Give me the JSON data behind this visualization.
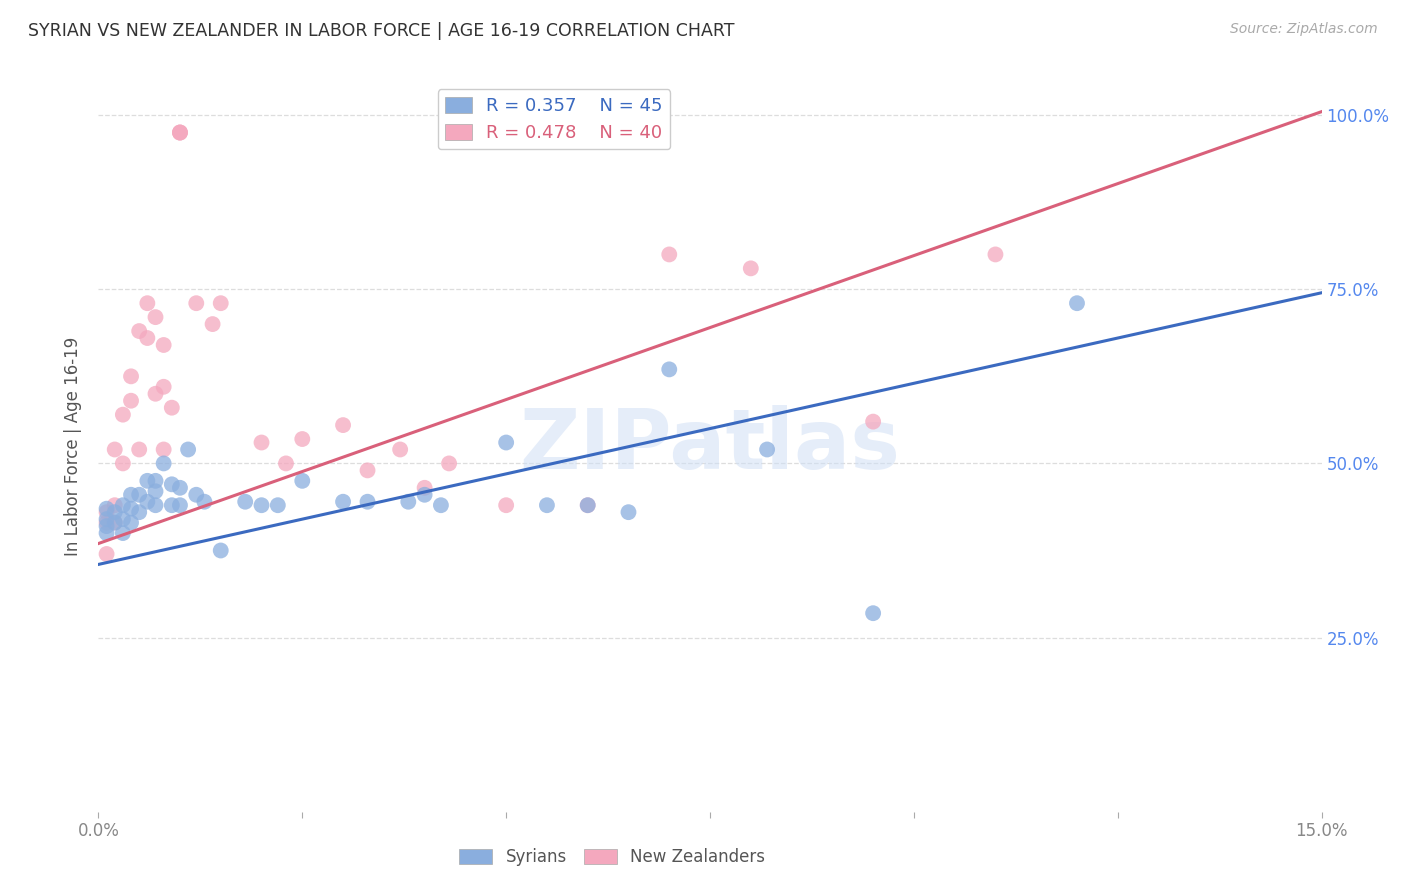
{
  "title": "SYRIAN VS NEW ZEALANDER IN LABOR FORCE | AGE 16-19 CORRELATION CHART",
  "source": "Source: ZipAtlas.com",
  "ylabel_label": "In Labor Force | Age 16-19",
  "xlim": [
    0.0,
    0.15
  ],
  "ylim": [
    0.0,
    1.05
  ],
  "yticks": [
    0.25,
    0.5,
    0.75,
    1.0
  ],
  "ytick_labels": [
    "25.0%",
    "50.0%",
    "75.0%",
    "100.0%"
  ],
  "xticks": [
    0.0,
    0.025,
    0.05,
    0.075,
    0.1,
    0.125,
    0.15
  ],
  "xtick_labels": [
    "0.0%",
    "",
    "",
    "",
    "",
    "",
    "15.0%"
  ],
  "background_color": "#ffffff",
  "grid_color": "#dddddd",
  "watermark_text": "ZIPatlas",
  "legend_r_syrian": "R = 0.357",
  "legend_n_syrian": "N = 45",
  "legend_r_nz": "R = 0.478",
  "legend_n_nz": "N = 40",
  "syrian_color": "#8AAEDE",
  "nz_color": "#F4A8BE",
  "syrian_line_color": "#3B6AC0",
  "nz_line_color": "#D9607A",
  "title_color": "#333333",
  "axis_label_color": "#555555",
  "tick_color_y": "#5588EE",
  "tick_color_x": "#888888",
  "syrian_points_x": [
    0.001,
    0.001,
    0.001,
    0.001,
    0.002,
    0.002,
    0.003,
    0.003,
    0.003,
    0.004,
    0.004,
    0.004,
    0.005,
    0.005,
    0.006,
    0.006,
    0.007,
    0.007,
    0.007,
    0.008,
    0.009,
    0.009,
    0.01,
    0.01,
    0.011,
    0.012,
    0.013,
    0.015,
    0.018,
    0.02,
    0.022,
    0.025,
    0.03,
    0.033,
    0.038,
    0.04,
    0.042,
    0.05,
    0.055,
    0.06,
    0.065,
    0.07,
    0.082,
    0.095,
    0.12
  ],
  "syrian_points_y": [
    0.435,
    0.42,
    0.41,
    0.4,
    0.43,
    0.415,
    0.44,
    0.42,
    0.4,
    0.455,
    0.435,
    0.415,
    0.455,
    0.43,
    0.475,
    0.445,
    0.475,
    0.46,
    0.44,
    0.5,
    0.47,
    0.44,
    0.465,
    0.44,
    0.52,
    0.455,
    0.445,
    0.375,
    0.445,
    0.44,
    0.44,
    0.475,
    0.445,
    0.445,
    0.445,
    0.455,
    0.44,
    0.53,
    0.44,
    0.44,
    0.43,
    0.635,
    0.52,
    0.285,
    0.73
  ],
  "nz_points_x": [
    0.001,
    0.001,
    0.001,
    0.002,
    0.002,
    0.002,
    0.003,
    0.003,
    0.004,
    0.004,
    0.005,
    0.005,
    0.006,
    0.006,
    0.007,
    0.007,
    0.008,
    0.008,
    0.008,
    0.009,
    0.01,
    0.01,
    0.01,
    0.012,
    0.014,
    0.015,
    0.02,
    0.023,
    0.025,
    0.03,
    0.033,
    0.037,
    0.04,
    0.043,
    0.05,
    0.06,
    0.07,
    0.08,
    0.095,
    0.11
  ],
  "nz_points_y": [
    0.43,
    0.415,
    0.37,
    0.52,
    0.44,
    0.415,
    0.57,
    0.5,
    0.625,
    0.59,
    0.69,
    0.52,
    0.73,
    0.68,
    0.71,
    0.6,
    0.67,
    0.61,
    0.52,
    0.58,
    0.975,
    0.975,
    0.975,
    0.73,
    0.7,
    0.73,
    0.53,
    0.5,
    0.535,
    0.555,
    0.49,
    0.52,
    0.465,
    0.5,
    0.44,
    0.44,
    0.8,
    0.78,
    0.56,
    0.8
  ],
  "syrian_line_x": [
    0.0,
    0.15
  ],
  "syrian_line_y": [
    0.355,
    0.745
  ],
  "nz_line_x": [
    0.0,
    0.15
  ],
  "nz_line_y": [
    0.385,
    1.005
  ]
}
